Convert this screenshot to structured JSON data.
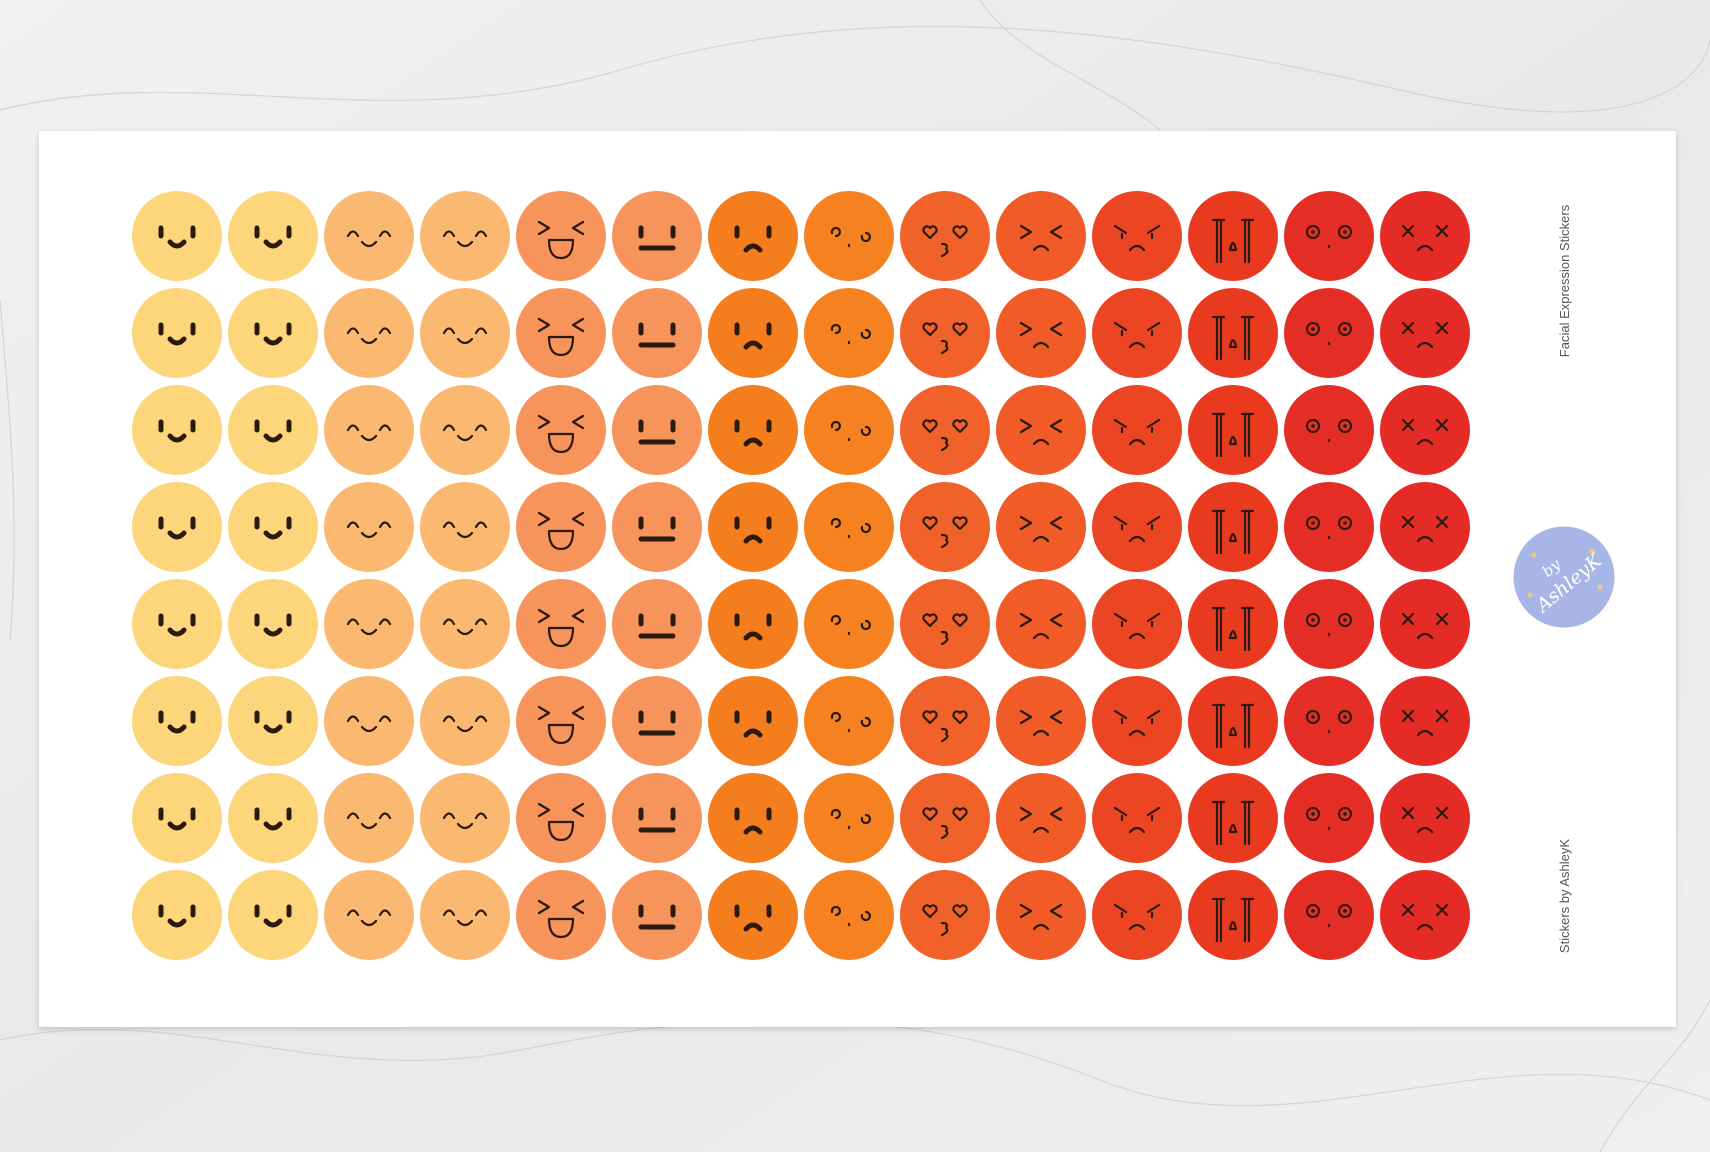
{
  "sheet": {
    "title": "Facial Expression Stickers",
    "credit": "Stickers by AshleyK",
    "logo": {
      "by": "by",
      "name": "AshleyK"
    },
    "sticker_colors": [
      "#fdd57a",
      "#fdd57a",
      "#fbb870",
      "#fbb870",
      "#f7945b",
      "#f7945b",
      "#f47d1e",
      "#f58120",
      "#f1622b",
      "#f05b28",
      "#ec4523",
      "#e93a20",
      "#e42d25",
      "#e52b25"
    ]
  }
}
